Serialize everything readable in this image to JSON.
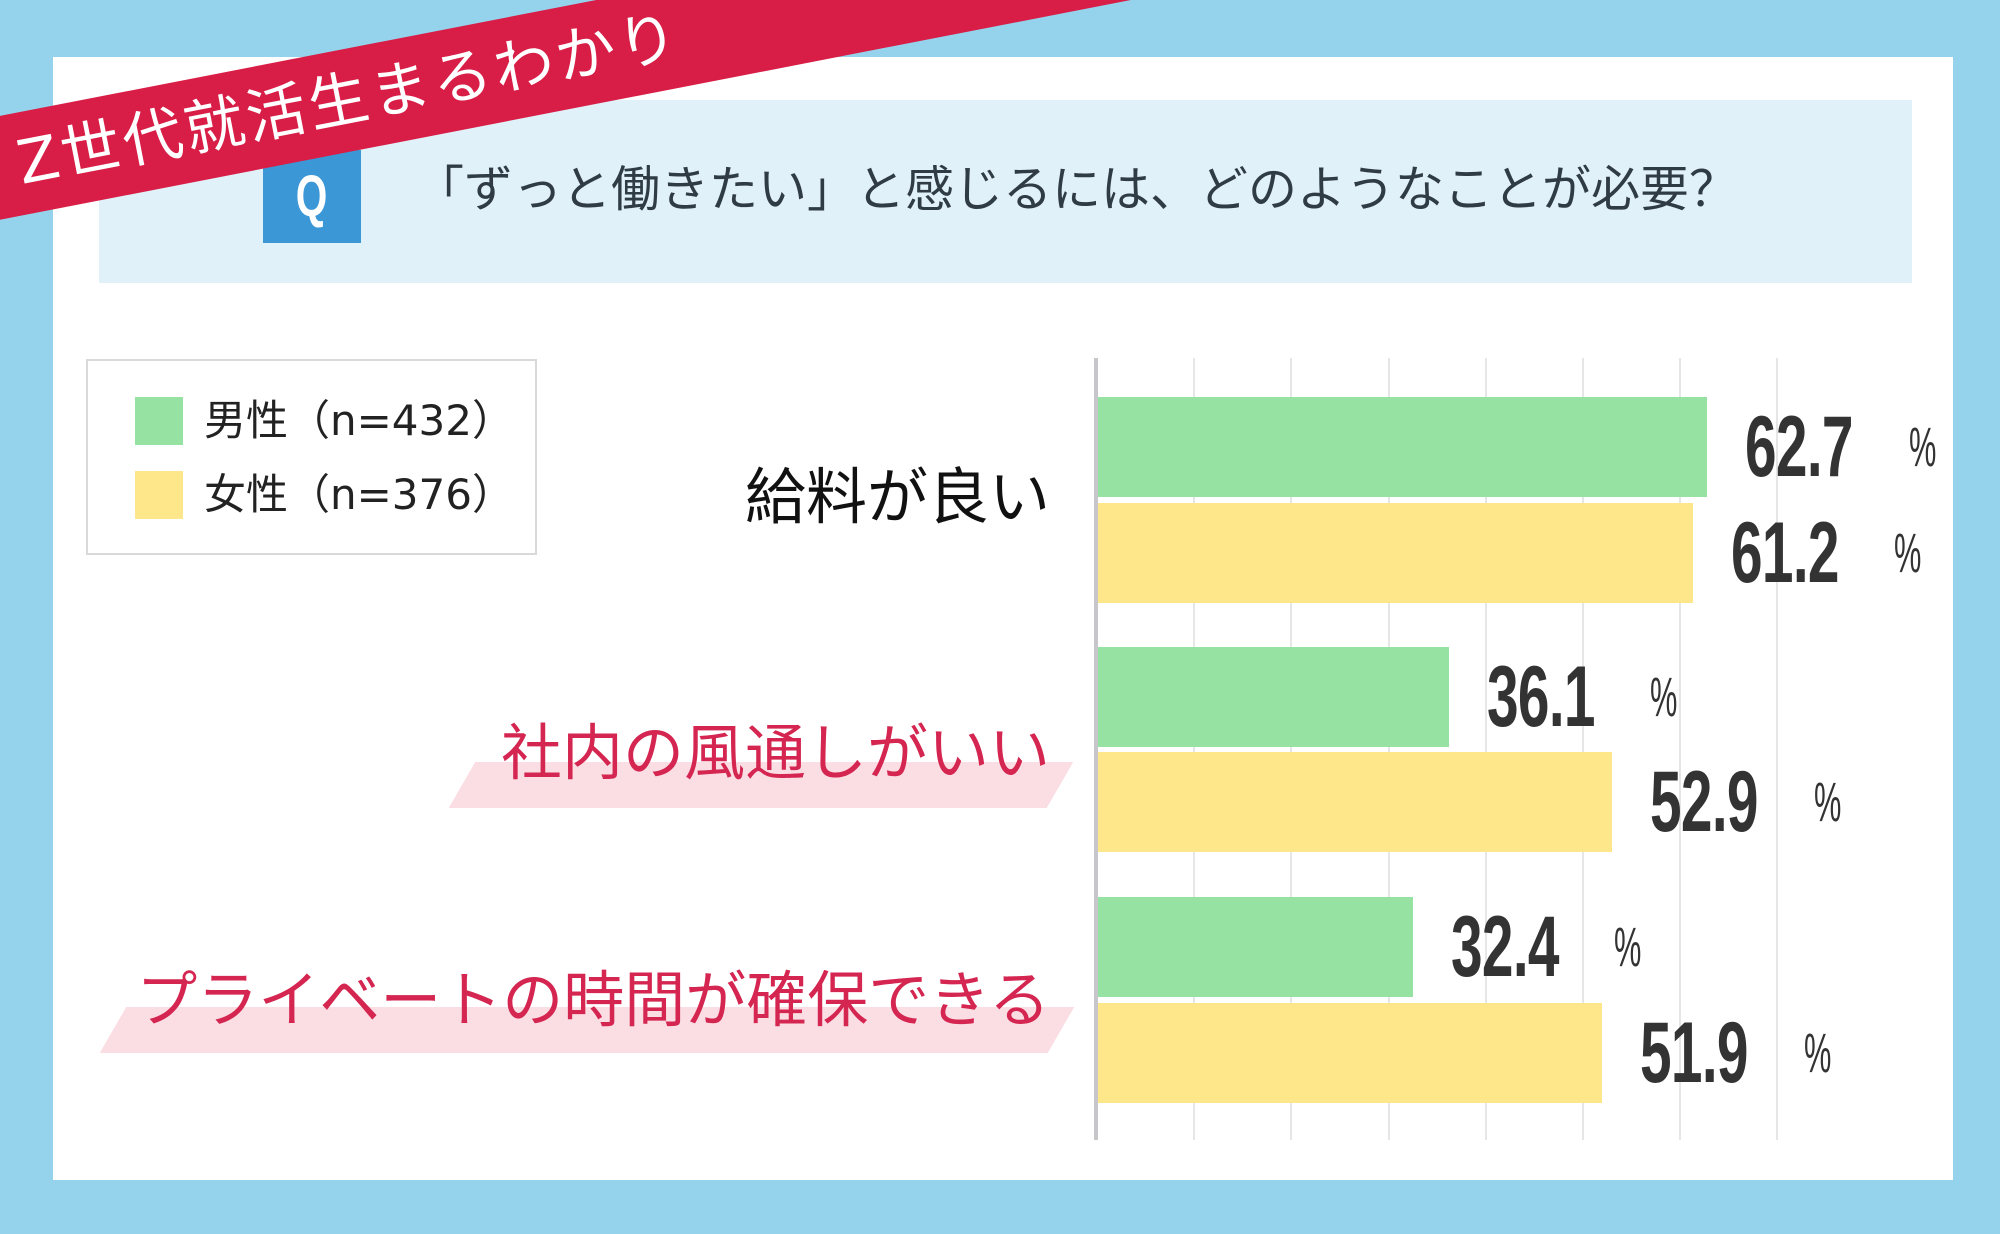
{
  "ribbon": {
    "label": "Z世代就活生まるわかり"
  },
  "question": {
    "badge": "Q",
    "text": "「ずっと働きたい」と感じるには、どのようなことが必要？"
  },
  "legend": {
    "items": [
      {
        "label": "男性（n=432）",
        "color": "#96e2a3"
      },
      {
        "label": "女性（n=376）",
        "color": "#fee78b"
      }
    ]
  },
  "chart_data": {
    "type": "bar",
    "orientation": "horizontal",
    "title": "「ずっと働きたい」と感じるには、どのようなことが必要？",
    "categories": [
      "給料が良い",
      "社内の風通しがいい",
      "プライベートの時間が確保できる"
    ],
    "series": [
      {
        "name": "男性（n=432）",
        "values": [
          62.7,
          36.1,
          32.4
        ],
        "color": "#96e2a3"
      },
      {
        "name": "女性（n=376）",
        "values": [
          61.2,
          52.9,
          51.9
        ],
        "color": "#fee78b"
      }
    ],
    "unit": "%",
    "xlabel": "",
    "ylabel": "",
    "xlim": [
      0,
      70
    ],
    "grid": true,
    "gridline_step": 10,
    "legend_position": "top-left",
    "highlighted_categories": [
      "社内の風通しがいい",
      "プライベートの時間が確保できる"
    ]
  },
  "colors": {
    "background": "#95d3ec",
    "ribbon": "#d81e46",
    "question_box": "#e1f1fa",
    "badge": "#3b97d6",
    "highlight_text": "#d42650",
    "highlight_band": "#fbdde4"
  }
}
